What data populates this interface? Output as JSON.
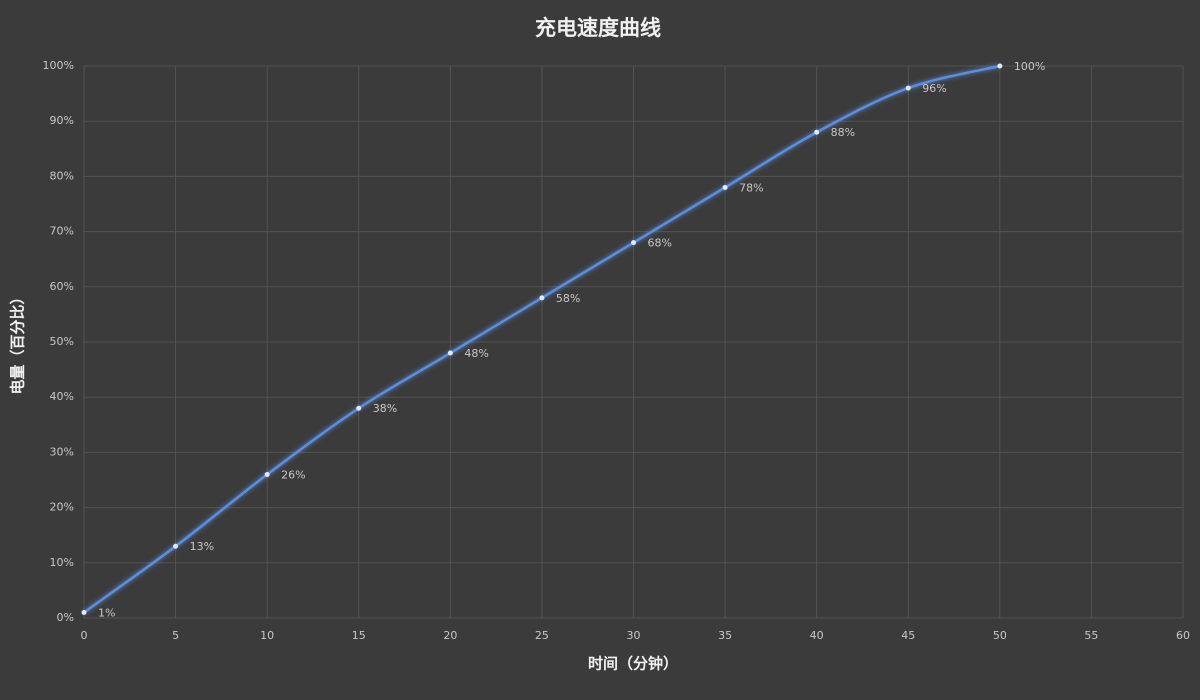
{
  "chart_data": {
    "type": "line",
    "title": "充电速度曲线",
    "x_label": "时间（分钟）",
    "y_label": "电量（百分比）",
    "x": [
      0,
      5,
      10,
      15,
      20,
      25,
      30,
      35,
      40,
      45,
      50
    ],
    "series": [
      {
        "name": "电量",
        "color": "#5b8ee0",
        "values": [
          1,
          13,
          26,
          38,
          48,
          58,
          68,
          78,
          88,
          96,
          100
        ],
        "value_labels": [
          "1%",
          "13%",
          "26%",
          "38%",
          "48%",
          "58%",
          "68%",
          "78%",
          "88%",
          "96%",
          "100%"
        ]
      }
    ],
    "xlim": [
      0,
      60
    ],
    "xticks": [
      0,
      5,
      10,
      15,
      20,
      25,
      30,
      35,
      40,
      45,
      50,
      55,
      60
    ],
    "ylim": [
      0,
      100
    ],
    "yticks": [
      {
        "value": 0,
        "label": "0%"
      },
      {
        "value": 10,
        "label": "10%"
      },
      {
        "value": 20,
        "label": "20%"
      },
      {
        "value": 30,
        "label": "30%"
      },
      {
        "value": 40,
        "label": "40%"
      },
      {
        "value": 50,
        "label": "50%"
      },
      {
        "value": 60,
        "label": "60%"
      },
      {
        "value": 70,
        "label": "70%"
      },
      {
        "value": 80,
        "label": "80%"
      },
      {
        "value": 90,
        "label": "90%"
      },
      {
        "value": 100,
        "label": "100%"
      }
    ],
    "grid": true,
    "smooth": true
  }
}
